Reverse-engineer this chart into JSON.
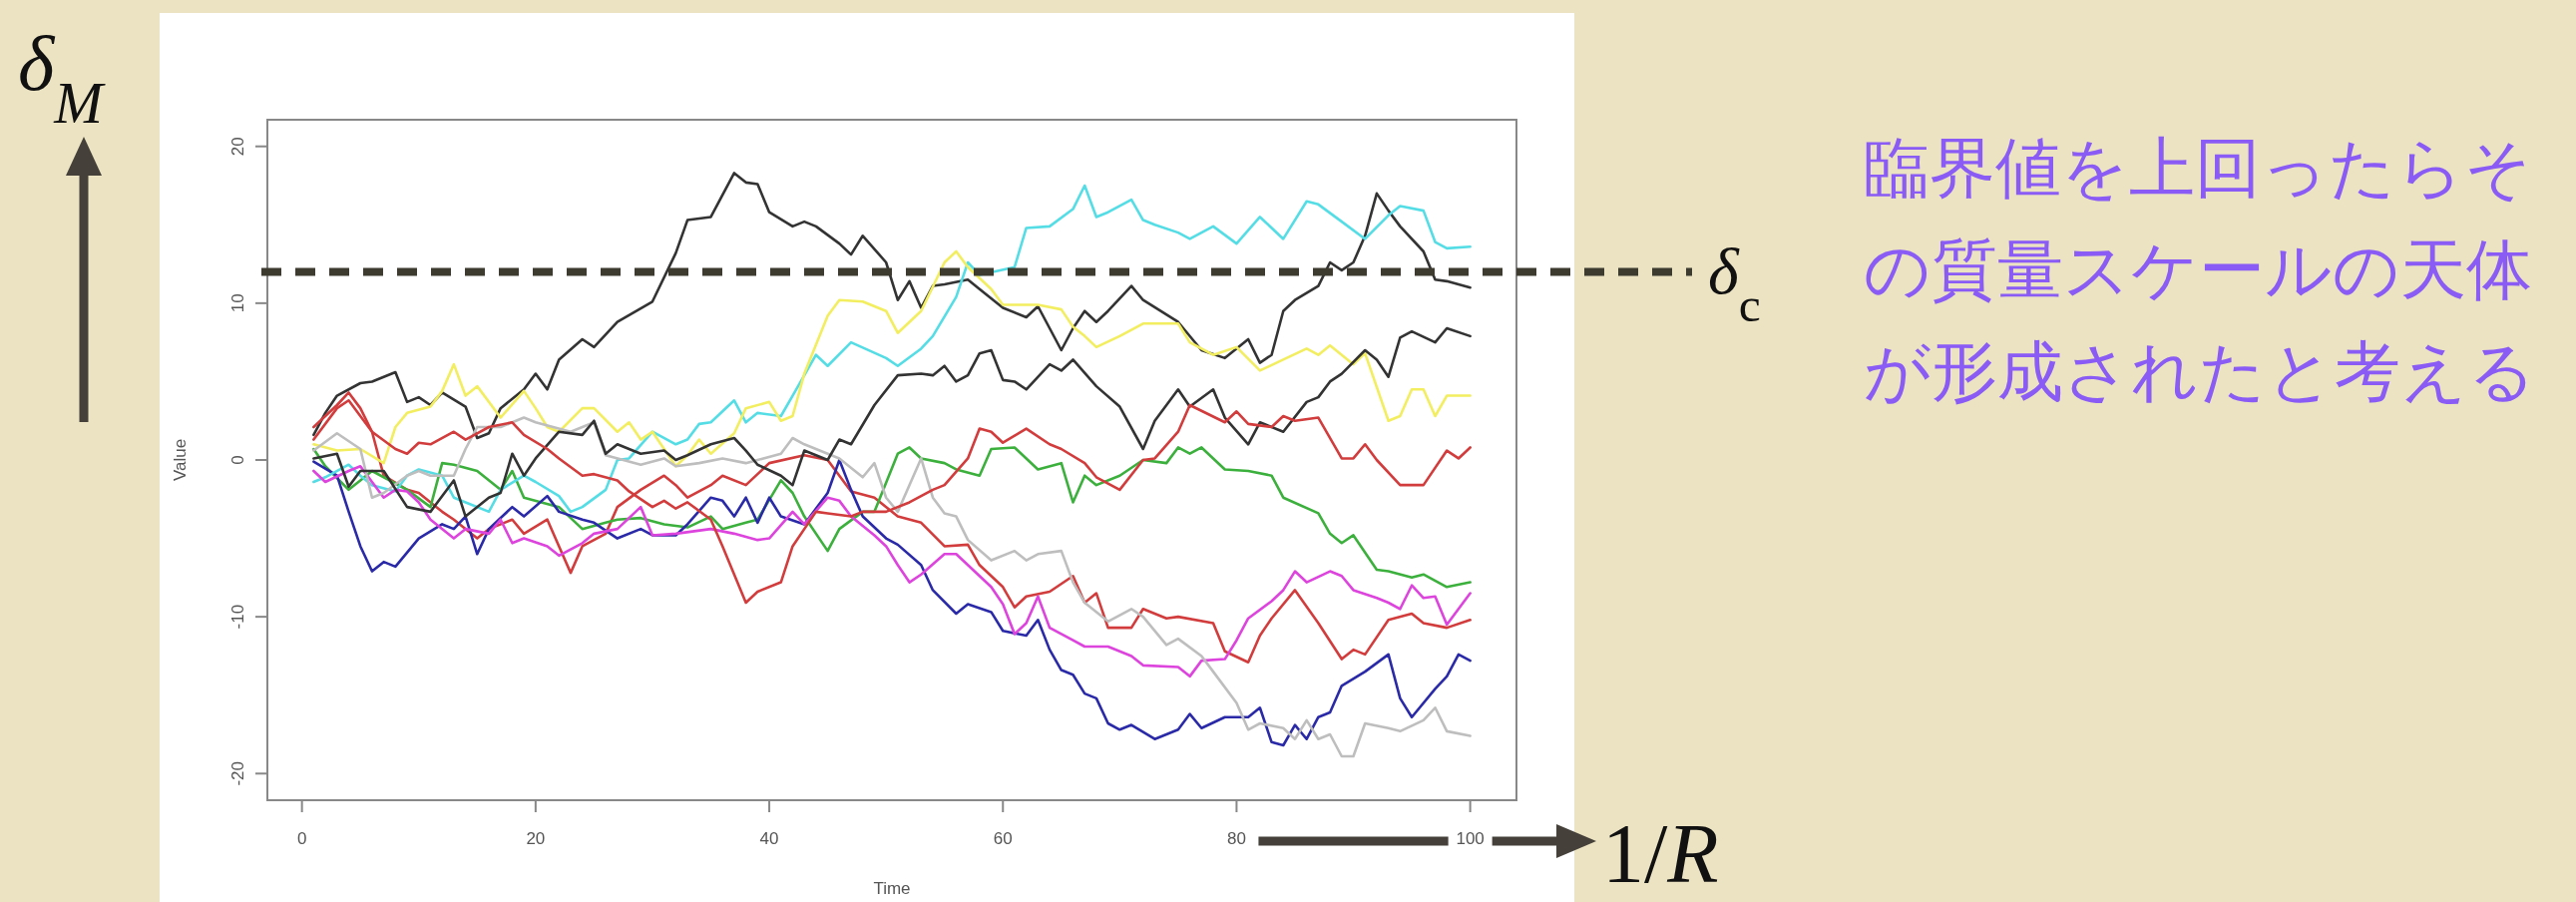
{
  "chart_data": {
    "type": "line",
    "xlabel": "Time",
    "ylabel": "Value",
    "xlim": [
      -2.96,
      103.96
    ],
    "ylim": [
      -21.7,
      21.7
    ],
    "xticks": [
      0,
      20,
      40,
      60,
      80,
      100
    ],
    "yticks": [
      -20,
      -10,
      0,
      10,
      20
    ],
    "series": [
      {
        "color": "#333333",
        "x": [
          1,
          2,
          3,
          5,
          6,
          8,
          9,
          10,
          11,
          12,
          14,
          15,
          16,
          17,
          19,
          20,
          21,
          22,
          24,
          25,
          27,
          30,
          32,
          33,
          35,
          37,
          38,
          39,
          40,
          42,
          43,
          44,
          46,
          47,
          48,
          50,
          51,
          52,
          53,
          54,
          55,
          57,
          58,
          60,
          62,
          63,
          65,
          66,
          67,
          68,
          69,
          71,
          72,
          75,
          77,
          79,
          81,
          82,
          83,
          84,
          85,
          87,
          88,
          89,
          90,
          91,
          92,
          93,
          94,
          96,
          97,
          98,
          100
        ],
        "values": [
          1.6,
          3.0,
          4.1,
          4.9,
          5.0,
          5.6,
          3.7,
          4.0,
          3.5,
          4.3,
          3.4,
          1.4,
          1.7,
          3.3,
          4.5,
          5.5,
          4.5,
          6.4,
          7.7,
          7.2,
          8.8,
          10.1,
          13.2,
          15.3,
          15.5,
          18.3,
          17.7,
          17.6,
          15.8,
          14.9,
          15.2,
          14.9,
          13.8,
          13.1,
          14.3,
          12.6,
          10.2,
          11.4,
          9.7,
          11.1,
          11.2,
          11.5,
          10.9,
          9.7,
          9.1,
          9.8,
          7.0,
          8.4,
          9.5,
          8.8,
          9.5,
          11.1,
          10.2,
          8.8,
          7.0,
          6.5,
          7.7,
          6.2,
          6.7,
          9.5,
          10.2,
          11.1,
          12.6,
          12.1,
          12.6,
          14.3,
          17.0,
          15.9,
          14.9,
          13.3,
          11.5,
          11.4,
          11.0
        ]
      },
      {
        "color": "#d23c3c",
        "x": [
          1,
          3,
          4,
          6,
          7,
          9,
          10,
          12,
          13,
          15,
          16,
          18,
          19,
          21,
          22,
          23,
          24,
          26,
          27,
          29,
          31,
          32,
          33,
          35,
          36,
          38,
          40,
          43,
          45,
          47,
          49,
          51,
          53,
          55,
          57,
          58,
          60,
          61,
          62,
          64,
          66,
          67,
          68,
          69,
          71,
          72,
          74,
          75,
          78,
          79,
          81,
          82,
          83,
          85,
          87,
          89,
          90,
          91,
          93,
          95,
          96,
          98,
          100
        ],
        "values": [
          1.3,
          3.3,
          3.8,
          1.8,
          -1.0,
          -1.9,
          -2.1,
          -3.3,
          -3.8,
          -5.0,
          -4.4,
          -3.8,
          -4.7,
          -3.8,
          -5.5,
          -7.2,
          -5.5,
          -4.7,
          -3.0,
          -1.9,
          -1.0,
          -1.6,
          -2.4,
          -1.6,
          -1.0,
          -1.6,
          -0.2,
          0.3,
          0.0,
          -2.0,
          -2.4,
          -3.6,
          -4.0,
          -5.5,
          -5.4,
          -6.7,
          -8.1,
          -9.4,
          -8.7,
          -8.4,
          -7.4,
          -9.1,
          -8.5,
          -10.7,
          -10.7,
          -9.5,
          -10.1,
          -10.0,
          -10.4,
          -12.2,
          -12.9,
          -11.2,
          -10.1,
          -8.3,
          -10.4,
          -12.7,
          -12.1,
          -12.4,
          -10.2,
          -9.8,
          -10.4,
          -10.7,
          -10.2
        ]
      },
      {
        "color": "#3cb03c",
        "x": [
          1,
          2,
          4,
          5,
          6,
          9,
          11,
          12,
          13,
          15,
          17,
          18,
          19,
          22,
          24,
          26,
          27,
          29,
          31,
          33,
          35,
          36,
          38,
          39,
          41,
          42,
          43,
          45,
          46,
          48,
          49,
          51,
          52,
          53,
          55,
          56,
          58,
          59,
          61,
          63,
          65,
          66,
          67,
          68,
          70,
          72,
          74,
          75,
          76,
          77,
          79,
          81,
          83,
          84,
          87,
          88,
          89,
          90,
          92,
          93,
          95,
          96,
          98,
          100
        ],
        "values": [
          0.7,
          -0.4,
          -1.9,
          -1.3,
          -0.7,
          -1.9,
          -3.0,
          -0.2,
          -0.3,
          -0.7,
          -1.9,
          -0.7,
          -2.4,
          -3.0,
          -4.4,
          -4.0,
          -3.8,
          -3.7,
          -4.1,
          -4.3,
          -3.6,
          -4.4,
          -4.0,
          -3.8,
          -1.3,
          -2.1,
          -3.6,
          -5.8,
          -4.4,
          -3.3,
          -3.3,
          0.4,
          0.8,
          0.1,
          -0.2,
          -0.6,
          -1.0,
          0.7,
          0.8,
          -0.6,
          -0.2,
          -2.7,
          -1.0,
          -1.6,
          -1.0,
          0.0,
          -0.2,
          0.8,
          0.4,
          0.8,
          -0.6,
          -0.7,
          -1.0,
          -2.4,
          -3.4,
          -4.7,
          -5.3,
          -4.8,
          -7.0,
          -7.1,
          -7.5,
          -7.3,
          -8.1,
          -7.8
        ]
      },
      {
        "color": "#2a2aa8",
        "x": [
          1,
          3,
          4,
          5,
          6,
          7,
          8,
          10,
          12,
          13,
          14,
          15,
          16,
          18,
          19,
          21,
          22,
          24,
          25,
          27,
          29,
          30,
          32,
          33,
          35,
          36,
          37,
          38,
          39,
          40,
          41,
          43,
          45,
          46,
          47,
          48,
          50,
          51,
          53,
          54,
          56,
          57,
          59,
          60,
          62,
          63,
          64,
          65,
          66,
          67,
          68,
          69,
          70,
          71,
          73,
          75,
          76,
          77,
          79,
          81,
          82,
          83,
          84,
          85,
          86,
          87,
          88,
          89,
          91,
          93,
          94,
          95,
          97,
          98,
          99,
          100
        ],
        "values": [
          -0.1,
          -1.0,
          -3.3,
          -5.5,
          -7.1,
          -6.5,
          -6.8,
          -5.0,
          -4.1,
          -4.4,
          -3.6,
          -6.0,
          -4.4,
          -3.0,
          -3.6,
          -2.3,
          -3.3,
          -3.8,
          -4.0,
          -5.0,
          -4.4,
          -4.8,
          -4.8,
          -4.1,
          -2.4,
          -2.6,
          -3.6,
          -2.4,
          -4.0,
          -2.4,
          -3.6,
          -4.1,
          -2.1,
          0.0,
          -1.9,
          -3.6,
          -5.0,
          -5.4,
          -6.7,
          -8.3,
          -9.8,
          -9.2,
          -9.7,
          -10.9,
          -11.2,
          -10.2,
          -12.1,
          -13.4,
          -13.7,
          -14.9,
          -15.2,
          -16.8,
          -17.2,
          -16.9,
          -17.8,
          -17.2,
          -16.2,
          -17.1,
          -16.4,
          -16.4,
          -15.8,
          -18.0,
          -18.2,
          -16.9,
          -17.8,
          -16.4,
          -16.1,
          -14.4,
          -13.5,
          -12.4,
          -15.2,
          -16.4,
          -14.6,
          -13.8,
          -12.4,
          -12.8
        ]
      },
      {
        "color": "#55dde6",
        "x": [
          1,
          2,
          4,
          5,
          6,
          8,
          9,
          10,
          12,
          13,
          16,
          17,
          19,
          20,
          22,
          23,
          24,
          26,
          27,
          28,
          30,
          32,
          33,
          34,
          35,
          37,
          38,
          39,
          41,
          42,
          44,
          45,
          47,
          50,
          51,
          53,
          54,
          56,
          57,
          58,
          61,
          62,
          64,
          66,
          67,
          68,
          69,
          71,
          72,
          73,
          75,
          76,
          78,
          80,
          82,
          84,
          86,
          87,
          89,
          91,
          93,
          94,
          96,
          97,
          98,
          100
        ],
        "values": [
          -1.4,
          -1.1,
          -0.3,
          -1.0,
          -1.6,
          -2.0,
          -1.0,
          -0.6,
          -1.0,
          -2.4,
          -3.3,
          -1.9,
          -1.0,
          -1.4,
          -2.3,
          -3.3,
          -3.0,
          -1.9,
          0.0,
          0.1,
          1.8,
          1.0,
          1.3,
          2.3,
          2.4,
          3.8,
          2.4,
          3.0,
          2.8,
          4.1,
          6.7,
          6.0,
          7.5,
          6.5,
          6.0,
          7.1,
          7.9,
          10.4,
          12.6,
          11.8,
          12.3,
          14.8,
          14.9,
          16.0,
          17.5,
          15.5,
          15.8,
          16.6,
          15.3,
          15.0,
          14.5,
          14.1,
          14.9,
          13.8,
          15.5,
          14.1,
          16.5,
          16.3,
          15.2,
          14.1,
          15.6,
          16.2,
          15.9,
          13.9,
          13.5,
          13.6
        ]
      },
      {
        "color": "#dd44dd",
        "x": [
          1,
          2,
          4,
          5,
          6,
          7,
          8,
          9,
          10,
          11,
          13,
          14,
          16,
          17,
          18,
          19,
          21,
          22,
          24,
          25,
          27,
          29,
          30,
          32,
          35,
          37,
          39,
          40,
          42,
          43,
          45,
          46,
          47,
          49,
          50,
          51,
          52,
          53,
          55,
          56,
          57,
          59,
          60,
          61,
          62,
          63,
          64,
          66,
          67,
          69,
          71,
          72,
          75,
          76,
          77,
          79,
          80,
          81,
          83,
          84,
          85,
          86,
          88,
          89,
          90,
          92,
          93,
          94,
          95,
          96,
          97,
          98,
          100
        ],
        "values": [
          -0.7,
          -1.4,
          -0.7,
          -0.4,
          -1.4,
          -2.4,
          -1.9,
          -2.0,
          -2.7,
          -3.8,
          -5.0,
          -4.4,
          -4.7,
          -3.8,
          -5.3,
          -5.0,
          -5.5,
          -6.1,
          -5.3,
          -4.7,
          -4.4,
          -3.0,
          -4.8,
          -4.7,
          -4.4,
          -4.7,
          -5.1,
          -5.0,
          -3.3,
          -4.1,
          -2.4,
          -2.6,
          -3.6,
          -4.8,
          -5.5,
          -6.7,
          -7.8,
          -7.3,
          -6.0,
          -6.0,
          -6.7,
          -8.1,
          -9.2,
          -11.1,
          -10.4,
          -8.7,
          -10.7,
          -11.5,
          -11.9,
          -11.9,
          -12.5,
          -13.1,
          -13.2,
          -13.8,
          -12.8,
          -12.7,
          -11.5,
          -10.1,
          -9.0,
          -8.3,
          -7.1,
          -7.8,
          -7.1,
          -7.4,
          -8.3,
          -8.8,
          -9.1,
          -9.5,
          -8.0,
          -8.8,
          -8.7,
          -10.5,
          -8.5
        ]
      },
      {
        "color": "#f2ee60",
        "x": [
          1,
          3,
          5,
          7,
          8,
          9,
          11,
          12,
          13,
          14,
          15,
          17,
          19,
          20,
          21,
          22,
          24,
          25,
          27,
          28,
          29,
          30,
          32,
          33,
          34,
          35,
          37,
          38,
          40,
          41,
          42,
          43,
          45,
          46,
          48,
          50,
          51,
          53,
          55,
          56,
          57,
          59,
          60,
          63,
          65,
          66,
          67,
          68,
          70,
          72,
          75,
          76,
          78,
          80,
          82,
          84,
          86,
          87,
          88,
          90,
          91,
          93,
          94,
          95,
          96,
          97,
          98,
          100
        ],
        "values": [
          1.0,
          0.6,
          0.7,
          -0.2,
          2.1,
          3.0,
          3.4,
          4.4,
          6.1,
          4.1,
          4.7,
          2.7,
          4.4,
          3.3,
          2.1,
          1.8,
          3.3,
          3.3,
          1.8,
          2.4,
          1.3,
          1.8,
          -0.4,
          0.3,
          1.3,
          0.4,
          1.7,
          3.3,
          3.7,
          2.5,
          2.8,
          5.5,
          9.2,
          10.2,
          10.1,
          9.5,
          8.1,
          9.5,
          12.6,
          13.3,
          12.3,
          10.9,
          9.9,
          9.9,
          9.6,
          8.5,
          7.9,
          7.2,
          7.9,
          8.7,
          8.7,
          7.5,
          6.7,
          7.2,
          5.7,
          6.4,
          7.1,
          6.7,
          7.3,
          6.1,
          6.8,
          2.5,
          2.8,
          4.5,
          4.5,
          2.8,
          4.1,
          4.1
        ]
      },
      {
        "color": "#bebebe",
        "x": [
          1,
          3,
          5,
          6,
          7,
          9,
          10,
          11,
          13,
          14,
          15,
          17,
          19,
          20,
          23,
          25,
          26,
          29,
          31,
          32,
          34,
          36,
          38,
          39,
          41,
          42,
          43,
          45,
          46,
          48,
          49,
          50,
          51,
          53,
          54,
          55,
          56,
          57,
          59,
          61,
          62,
          63,
          65,
          66,
          67,
          69,
          71,
          72,
          74,
          75,
          77,
          78,
          80,
          81,
          82,
          84,
          85,
          86,
          87,
          88,
          89,
          90,
          91,
          93,
          94,
          96,
          97,
          98,
          100
        ],
        "values": [
          0.6,
          1.7,
          0.7,
          -2.4,
          -2.1,
          -1.0,
          -0.7,
          -1.0,
          -1.0,
          0.7,
          2.1,
          2.1,
          2.7,
          2.4,
          1.8,
          2.4,
          0.3,
          -0.3,
          0.1,
          -0.4,
          -0.2,
          0.1,
          -0.2,
          0.0,
          0.4,
          1.4,
          1.0,
          0.4,
          0.1,
          -1.1,
          -0.2,
          -2.4,
          -3.3,
          0.1,
          -2.4,
          -3.4,
          -3.6,
          -5.1,
          -6.4,
          -5.8,
          -6.4,
          -6.0,
          -5.8,
          -7.8,
          -9.1,
          -10.3,
          -9.5,
          -10.0,
          -11.8,
          -11.4,
          -12.5,
          -13.5,
          -15.5,
          -17.2,
          -16.8,
          -17.1,
          -17.8,
          -16.6,
          -17.8,
          -17.5,
          -18.9,
          -18.9,
          -16.8,
          -17.1,
          -17.3,
          -16.6,
          -15.8,
          -17.3,
          -17.6
        ]
      },
      {
        "color": "#333333",
        "x": [
          1,
          3,
          4,
          5,
          7,
          9,
          11,
          13,
          14,
          16,
          17,
          18,
          19,
          20,
          22,
          24,
          25,
          26,
          27,
          29,
          31,
          32,
          33,
          35,
          37,
          38,
          39,
          41,
          42,
          43,
          45,
          46,
          47,
          49,
          51,
          53,
          54,
          55,
          56,
          57,
          58,
          59,
          60,
          61,
          62,
          64,
          65,
          66,
          68,
          70,
          72,
          73,
          75,
          76,
          78,
          79,
          81,
          82,
          84,
          86,
          87,
          88,
          89,
          91,
          92,
          93,
          94,
          95,
          97,
          98,
          100
        ],
        "values": [
          0.1,
          0.4,
          -1.7,
          -0.7,
          -0.7,
          -3.0,
          -3.3,
          -1.3,
          -3.6,
          -2.4,
          -2.1,
          0.4,
          -1.0,
          0.1,
          1.8,
          1.6,
          2.5,
          0.4,
          1.0,
          0.4,
          0.6,
          0.0,
          0.3,
          1.0,
          1.4,
          0.6,
          -0.3,
          -1.0,
          -1.6,
          0.6,
          0.0,
          1.3,
          1.0,
          3.5,
          5.4,
          5.5,
          5.4,
          6.0,
          5.0,
          5.4,
          6.8,
          7.0,
          5.1,
          5.0,
          4.5,
          6.1,
          5.7,
          6.4,
          4.7,
          3.4,
          0.7,
          2.5,
          4.5,
          3.4,
          4.5,
          2.7,
          1.0,
          2.4,
          1.8,
          3.7,
          4.0,
          5.0,
          5.5,
          7.0,
          6.4,
          5.3,
          7.8,
          8.2,
          7.5,
          8.4,
          7.9
        ]
      },
      {
        "color": "#d23c3c",
        "x": [
          1,
          3,
          4,
          5,
          6,
          8,
          9,
          10,
          11,
          13,
          14,
          15,
          16,
          18,
          19,
          21,
          22,
          24,
          25,
          27,
          28,
          30,
          31,
          32,
          33,
          35,
          36,
          38,
          39,
          41,
          42,
          44,
          45,
          47,
          48,
          50,
          52,
          54,
          55,
          57,
          58,
          59,
          60,
          62,
          64,
          65,
          67,
          68,
          70,
          72,
          73,
          75,
          76,
          79,
          80,
          81,
          83,
          84,
          85,
          87,
          89,
          90,
          91,
          92,
          94,
          96,
          98,
          99,
          100
        ],
        "values": [
          2.1,
          3.5,
          4.3,
          3.3,
          1.8,
          0.7,
          0.4,
          1.1,
          1.0,
          1.8,
          1.3,
          1.7,
          2.1,
          2.4,
          1.6,
          0.7,
          0.1,
          -1.0,
          -0.9,
          -1.3,
          -2.0,
          -3.0,
          -2.6,
          -3.1,
          -2.7,
          -3.8,
          -5.5,
          -9.1,
          -8.4,
          -7.8,
          -5.5,
          -3.3,
          -3.4,
          -3.6,
          -3.3,
          -3.3,
          -2.7,
          -1.9,
          -1.6,
          0.1,
          2.0,
          1.8,
          1.1,
          2.0,
          1.0,
          0.7,
          -0.2,
          -1.1,
          -1.9,
          0.0,
          0.1,
          1.8,
          3.5,
          2.4,
          3.1,
          2.3,
          2.1,
          2.8,
          2.5,
          2.7,
          0.1,
          0.1,
          1.0,
          0.0,
          -1.6,
          -1.6,
          0.6,
          0.1,
          0.8
        ]
      }
    ],
    "ref_lines": [
      {
        "axis": "y",
        "value": 12,
        "label": "δ$_{c}$",
        "color": "#3d3a30",
        "line_style": "dashed"
      }
    ],
    "annotations": [
      "δ$_{M}$",
      "1/*R*",
      "臨界値を上回ったらその質量スケールの天体が形成されたと考える"
    ]
  }
}
